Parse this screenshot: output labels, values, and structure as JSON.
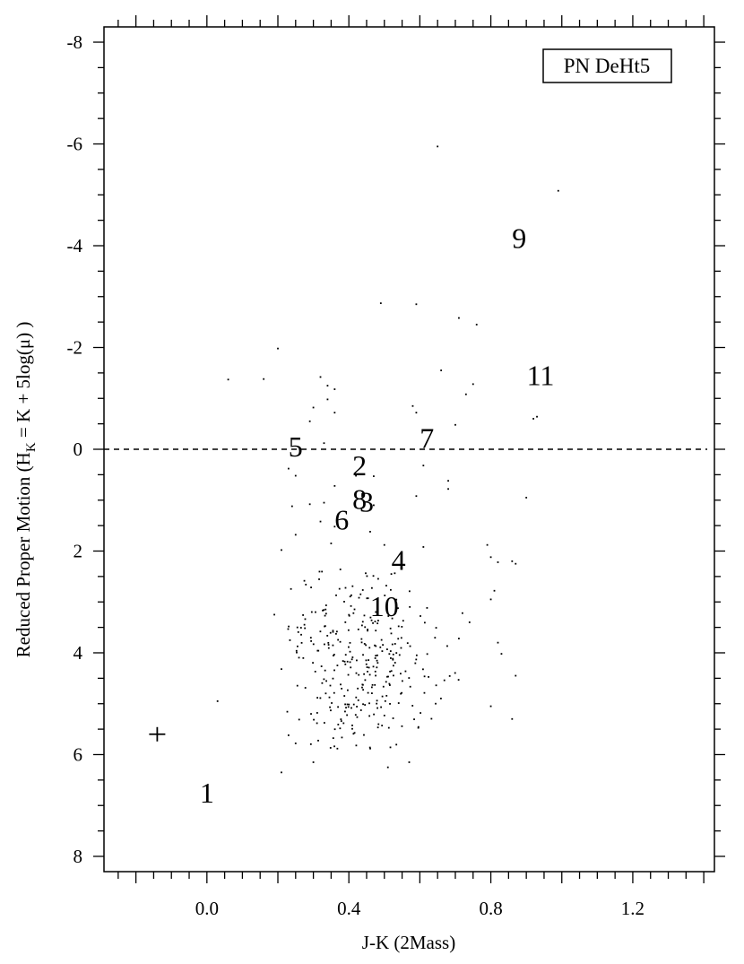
{
  "chart_data": {
    "type": "scatter",
    "xlabel": "J-K (2Mass)",
    "ylabel_main": "Reduced Proper Motion (H",
    "ylabel_sub": "K",
    "ylabel_rest": " = K + 5log(μ) )",
    "legend_box": "PN DeHt5",
    "xlim": [
      -0.29,
      1.43
    ],
    "ylim": [
      8.3,
      -8.3
    ],
    "y_inverted": true,
    "grid": false,
    "x_ticks": [
      0.0,
      0.4,
      0.8,
      1.2
    ],
    "x_tick_labels": [
      "0.0",
      "0.4",
      "0.8",
      "1.2"
    ],
    "y_ticks": [
      -8,
      -6,
      -4,
      -2,
      0,
      2,
      4,
      6,
      8
    ],
    "y_tick_labels": [
      "-8",
      "-6",
      "-4",
      "-2",
      "0",
      "2",
      "4",
      "6",
      "8"
    ],
    "reference_line": {
      "y": 0,
      "style": "dashed"
    },
    "error_cross": {
      "x": -0.14,
      "y": 5.6
    },
    "labeled_points": [
      {
        "label": "1",
        "x": 0.0,
        "y": 6.75
      },
      {
        "label": "2",
        "x": 0.43,
        "y": 0.32
      },
      {
        "label": "3",
        "x": 0.45,
        "y": 1.03
      },
      {
        "label": "4",
        "x": 0.54,
        "y": 2.18
      },
      {
        "label": "5",
        "x": 0.25,
        "y": -0.05
      },
      {
        "label": "6",
        "x": 0.38,
        "y": 1.38
      },
      {
        "label": "7",
        "x": 0.62,
        "y": -0.22
      },
      {
        "label": "8",
        "x": 0.43,
        "y": 0.98
      },
      {
        "label": "9",
        "x": 0.88,
        "y": -4.15
      },
      {
        "label": "10",
        "x": 0.5,
        "y": 3.08
      },
      {
        "label": "11",
        "x": 0.94,
        "y": -1.45
      }
    ],
    "field_stars": [
      [
        0.65,
        -5.95
      ],
      [
        0.99,
        -5.08
      ],
      [
        0.49,
        -2.87
      ],
      [
        0.59,
        -2.85
      ],
      [
        0.71,
        -2.58
      ],
      [
        0.76,
        -2.45
      ],
      [
        0.2,
        -1.98
      ],
      [
        0.06,
        -1.37
      ],
      [
        0.16,
        -1.38
      ],
      [
        0.32,
        -1.42
      ],
      [
        0.34,
        -1.25
      ],
      [
        0.36,
        -1.18
      ],
      [
        0.34,
        -0.98
      ],
      [
        0.3,
        -0.82
      ],
      [
        0.36,
        -0.72
      ],
      [
        0.29,
        -0.55
      ],
      [
        0.33,
        -0.12
      ],
      [
        0.66,
        -1.55
      ],
      [
        0.75,
        -1.28
      ],
      [
        0.73,
        -1.08
      ],
      [
        0.58,
        -0.85
      ],
      [
        0.59,
        -0.72
      ],
      [
        0.7,
        -0.48
      ],
      [
        0.92,
        -0.6
      ],
      [
        0.93,
        -0.64
      ],
      [
        0.23,
        0.38
      ],
      [
        0.25,
        0.52
      ],
      [
        0.42,
        0.52
      ],
      [
        0.47,
        0.53
      ],
      [
        0.36,
        0.72
      ],
      [
        0.61,
        0.32
      ],
      [
        0.68,
        0.62
      ],
      [
        0.68,
        0.78
      ],
      [
        0.24,
        1.12
      ],
      [
        0.33,
        1.05
      ],
      [
        0.29,
        1.08
      ],
      [
        0.47,
        1.1
      ],
      [
        0.59,
        0.92
      ],
      [
        0.9,
        0.95
      ],
      [
        0.32,
        1.42
      ],
      [
        0.36,
        1.52
      ],
      [
        0.46,
        1.62
      ],
      [
        0.5,
        1.88
      ],
      [
        0.61,
        1.92
      ],
      [
        0.25,
        1.68
      ],
      [
        0.35,
        1.85
      ],
      [
        0.21,
        1.98
      ],
      [
        0.79,
        1.88
      ],
      [
        0.8,
        2.12
      ],
      [
        0.82,
        2.22
      ],
      [
        0.86,
        2.2
      ],
      [
        0.87,
        2.25
      ],
      [
        0.81,
        2.78
      ],
      [
        0.19,
        3.25
      ],
      [
        0.21,
        4.32
      ],
      [
        0.03,
        4.95
      ],
      [
        0.23,
        5.62
      ],
      [
        0.25,
        5.78
      ],
      [
        0.3,
        6.15
      ],
      [
        0.21,
        6.35
      ],
      [
        0.51,
        6.25
      ],
      [
        0.57,
        6.15
      ],
      [
        0.87,
        4.45
      ],
      [
        0.86,
        5.3
      ],
      [
        0.8,
        5.05
      ],
      [
        0.8,
        2.95
      ],
      [
        0.72,
        3.22
      ],
      [
        0.74,
        3.4
      ],
      [
        0.71,
        3.72
      ],
      [
        0.82,
        3.8
      ],
      [
        0.83,
        4.02
      ]
    ],
    "cluster": {
      "seed": 12345,
      "count": 320,
      "x_mean": 0.43,
      "x_sd": 0.11,
      "y_mean": 4.2,
      "y_sd": 0.85
    }
  }
}
